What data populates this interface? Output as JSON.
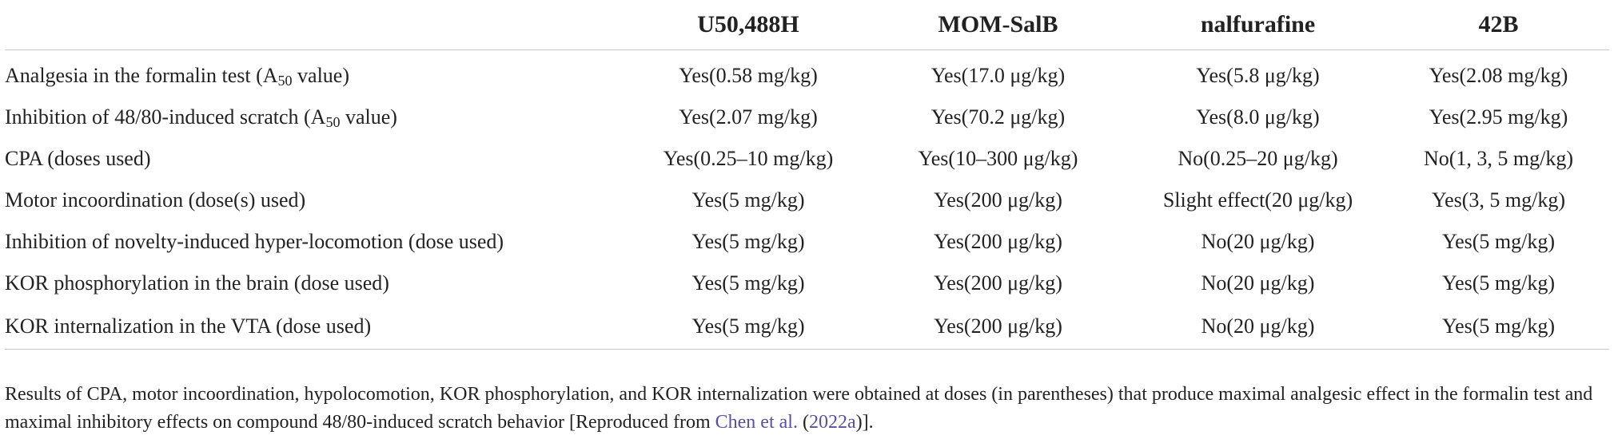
{
  "table": {
    "columns": [
      "",
      "U50,488H",
      "MOM-SalB",
      "nalfurafine",
      "42B"
    ],
    "rows": [
      {
        "label_pre": "Analgesia in the formalin test (A",
        "label_sub": "50",
        "label_post": " value)",
        "cells": [
          "Yes(0.58 mg/kg)",
          "Yes(17.0 μg/kg)",
          "Yes(5.8 μg/kg)",
          "Yes(2.08 mg/kg)"
        ]
      },
      {
        "label_pre": "Inhibition of 48/80-induced scratch (A",
        "label_sub": "50",
        "label_post": " value)",
        "cells": [
          "Yes(2.07 mg/kg)",
          "Yes(70.2 μg/kg)",
          "Yes(8.0 μg/kg)",
          "Yes(2.95 mg/kg)"
        ]
      },
      {
        "label": "CPA (doses used)",
        "cells": [
          "Yes(0.25–10 mg/kg)",
          "Yes(10–300 μg/kg)",
          "No(0.25–20 μg/kg)",
          "No(1, 3, 5 mg/kg)"
        ]
      },
      {
        "label": "Motor incoordination (dose(s) used)",
        "cells": [
          "Yes(5 mg/kg)",
          "Yes(200 μg/kg)",
          "Slight effect(20 μg/kg)",
          "Yes(3, 5 mg/kg)"
        ]
      },
      {
        "label": "Inhibition of novelty-induced hyper-locomotion (dose used)",
        "cells": [
          "Yes(5 mg/kg)",
          "Yes(200 μg/kg)",
          "No(20 μg/kg)",
          "Yes(5 mg/kg)"
        ]
      },
      {
        "label": "KOR phosphorylation in the brain (dose used)",
        "cells": [
          "Yes(5 mg/kg)",
          "Yes(200 μg/kg)",
          "No(20 μg/kg)",
          "Yes(5 mg/kg)"
        ]
      },
      {
        "label": "KOR internalization in the VTA (dose used)",
        "cells": [
          "Yes(5 mg/kg)",
          "Yes(200 μg/kg)",
          "No(20 μg/kg)",
          "Yes(5 mg/kg)"
        ]
      }
    ]
  },
  "footnote": {
    "text": "Results of CPA, motor incoordination, hypolocomotion, KOR phosphorylation, and KOR internalization were obtained at doses (in parentheses) that produce maximal analgesic effect in the formalin test and maximal inhibitory effects on compound 48/80-induced scratch behavior [Reproduced from ",
    "link_author": "Chen et al.",
    "between": " (",
    "link_year": "2022a",
    "end": ")]."
  },
  "colors": {
    "text": "#222222",
    "rule": "#c9c9c9",
    "link": "#5a4fa0"
  }
}
